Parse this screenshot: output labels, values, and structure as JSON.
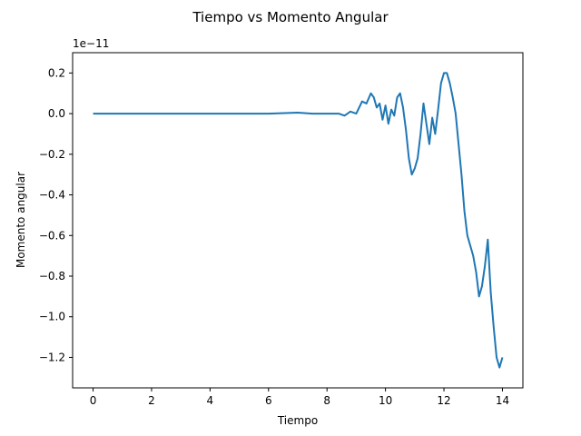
{
  "chart_data": {
    "type": "line",
    "title": "Tiempo vs Momento Angular",
    "xlabel": "Tiempo",
    "ylabel": "Momento angular",
    "y_offset_label": "1e−11",
    "xlim": [
      -0.7,
      14.7
    ],
    "ylim": [
      -1.35,
      0.3
    ],
    "x_ticks": [
      0,
      2,
      4,
      6,
      8,
      10,
      12,
      14
    ],
    "x_tick_labels": [
      "0",
      "2",
      "4",
      "6",
      "8",
      "10",
      "12",
      "14"
    ],
    "y_ticks": [
      0.2,
      0.0,
      -0.2,
      -0.4,
      -0.6,
      -0.8,
      -1.0,
      -1.2
    ],
    "y_tick_labels": [
      "0.2",
      "0.0",
      "−0.2",
      "−0.4",
      "−0.6",
      "−0.8",
      "−1.0",
      "−1.2"
    ],
    "grid": false,
    "series": [
      {
        "color": "#1f77b4",
        "x": [
          0,
          1,
          2,
          3,
          4,
          5,
          6,
          7,
          7.5,
          8.0,
          8.2,
          8.4,
          8.6,
          8.8,
          9.0,
          9.2,
          9.35,
          9.5,
          9.6,
          9.7,
          9.8,
          9.9,
          10.0,
          10.1,
          10.2,
          10.3,
          10.4,
          10.5,
          10.6,
          10.7,
          10.8,
          10.9,
          11.0,
          11.1,
          11.2,
          11.3,
          11.4,
          11.5,
          11.6,
          11.7,
          11.8,
          11.9,
          12.0,
          12.1,
          12.2,
          12.3,
          12.4,
          12.5,
          12.6,
          12.7,
          12.8,
          12.9,
          13.0,
          13.1,
          13.2,
          13.3,
          13.4,
          13.5,
          13.6,
          13.7,
          13.8,
          13.9,
          14.0
        ],
        "y": [
          0.0,
          0.0,
          0.0,
          0.0,
          0.0,
          0.0,
          0.0,
          0.005,
          0.0,
          0.0,
          0.0,
          0.0,
          -0.01,
          0.01,
          0.0,
          0.06,
          0.05,
          0.1,
          0.08,
          0.03,
          0.05,
          -0.03,
          0.04,
          -0.05,
          0.02,
          -0.01,
          0.08,
          0.1,
          0.03,
          -0.08,
          -0.22,
          -0.3,
          -0.27,
          -0.22,
          -0.1,
          0.05,
          -0.05,
          -0.15,
          -0.02,
          -0.1,
          0.02,
          0.15,
          0.2,
          0.2,
          0.15,
          0.08,
          0.0,
          -0.15,
          -0.3,
          -0.48,
          -0.6,
          -0.65,
          -0.7,
          -0.78,
          -0.9,
          -0.85,
          -0.75,
          -0.62,
          -0.88,
          -1.05,
          -1.2,
          -1.25,
          -1.2
        ]
      }
    ]
  }
}
